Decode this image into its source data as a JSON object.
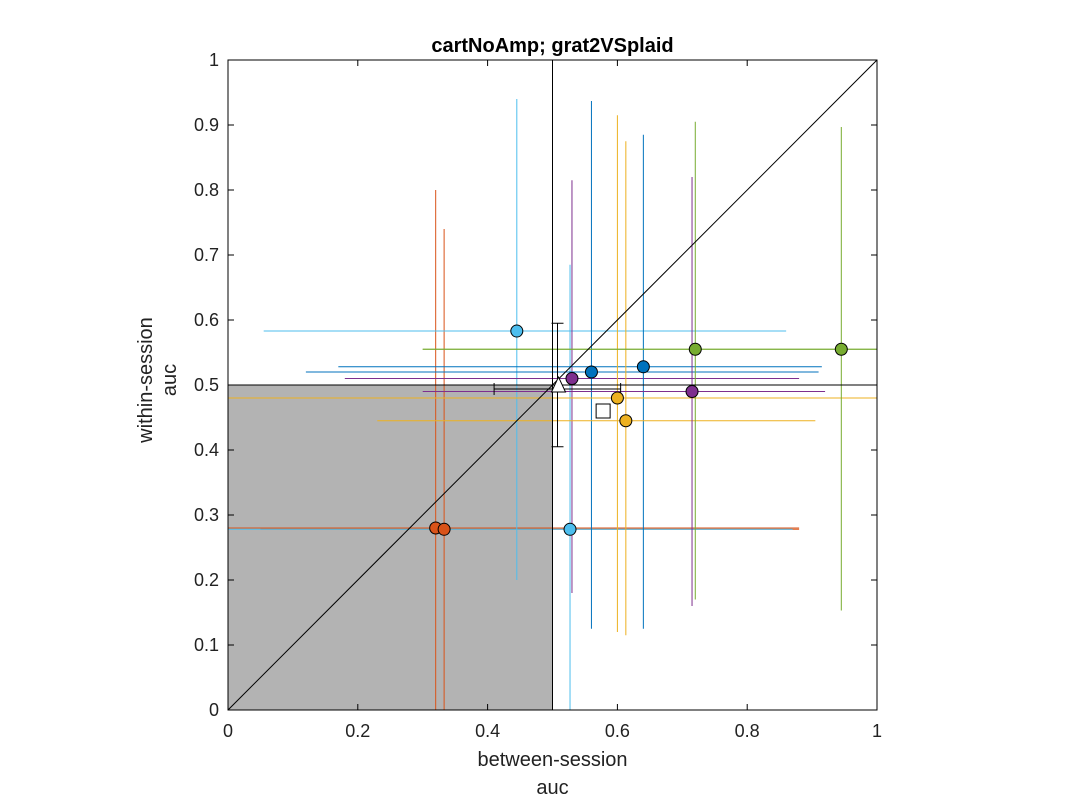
{
  "chart_data": {
    "type": "scatter",
    "title": "cartNoAmp; grat2VSplaid",
    "xlabel": [
      "between-session",
      "auc"
    ],
    "ylabel": [
      "within-session",
      "auc"
    ],
    "xlim": [
      0,
      1
    ],
    "ylim": [
      0,
      1
    ],
    "xticks": [
      0,
      0.2,
      0.4,
      0.6,
      0.8,
      1
    ],
    "yticks": [
      0,
      0.1,
      0.2,
      0.3,
      0.4,
      0.5,
      0.6,
      0.7,
      0.8,
      0.9,
      1
    ],
    "grid": false,
    "shaded_region": {
      "x": [
        0,
        0.5
      ],
      "y": [
        0,
        0.5
      ],
      "color": "#b3b3b3"
    },
    "reference_lines": [
      {
        "kind": "diagonal",
        "from": [
          0,
          0
        ],
        "to": [
          1,
          1
        ]
      },
      {
        "kind": "vertical",
        "x": 0.5
      },
      {
        "kind": "horizontal",
        "y": 0.5
      }
    ],
    "points": [
      {
        "x": 0.32,
        "y": 0.28,
        "x_err": [
          0.0,
          0.88
        ],
        "y_err": [
          0.0,
          0.8
        ],
        "color": "#d95319"
      },
      {
        "x": 0.333,
        "y": 0.278,
        "x_err": [
          0.05,
          0.88
        ],
        "y_err": [
          0.0,
          0.74
        ],
        "color": "#d95319"
      },
      {
        "x": 0.445,
        "y": 0.583,
        "x_err": [
          0.055,
          0.86
        ],
        "y_err": [
          0.2,
          0.94
        ],
        "color": "#4dbeee"
      },
      {
        "x": 0.527,
        "y": 0.278,
        "x_err": [
          0.0,
          0.87
        ],
        "y_err": [
          0.0,
          0.685
        ],
        "color": "#4dbeee"
      },
      {
        "x": 0.53,
        "y": 0.51,
        "x_err": [
          0.18,
          0.88
        ],
        "y_err": [
          0.18,
          0.815
        ],
        "color": "#7e2f8e"
      },
      {
        "x": 0.56,
        "y": 0.52,
        "x_err": [
          0.12,
          0.91
        ],
        "y_err": [
          0.125,
          0.937
        ],
        "color": "#0072bd"
      },
      {
        "x": 0.64,
        "y": 0.528,
        "x_err": [
          0.17,
          0.915
        ],
        "y_err": [
          0.125,
          0.885
        ],
        "color": "#0072bd"
      },
      {
        "x": 0.6,
        "y": 0.48,
        "x_err": [
          0.0,
          1.0
        ],
        "y_err": [
          0.12,
          0.915
        ],
        "color": "#edb120"
      },
      {
        "x": 0.613,
        "y": 0.445,
        "x_err": [
          0.23,
          0.905
        ],
        "y_err": [
          0.115,
          0.875
        ],
        "color": "#edb120"
      },
      {
        "x": 0.715,
        "y": 0.49,
        "x_err": [
          0.3,
          0.92
        ],
        "y_err": [
          0.16,
          0.82
        ],
        "color": "#7e2f8e"
      },
      {
        "x": 0.72,
        "y": 0.555,
        "x_err": [
          0.3,
          1.0
        ],
        "y_err": [
          0.17,
          0.905
        ],
        "color": "#77ac30"
      },
      {
        "x": 0.945,
        "y": 0.555,
        "x_err": [
          0.3,
          1.0
        ],
        "y_err": [
          0.153,
          0.897
        ],
        "color": "#77ac30"
      }
    ],
    "summary_marker": {
      "x": 0.578,
      "y": 0.46,
      "shape": "square",
      "color": "#ffffff"
    },
    "mean_errorbars": {
      "x": 0.5,
      "y": 0.5,
      "x_err": [
        0.41,
        0.605
      ],
      "y_err": [
        0.405,
        0.595
      ]
    }
  }
}
